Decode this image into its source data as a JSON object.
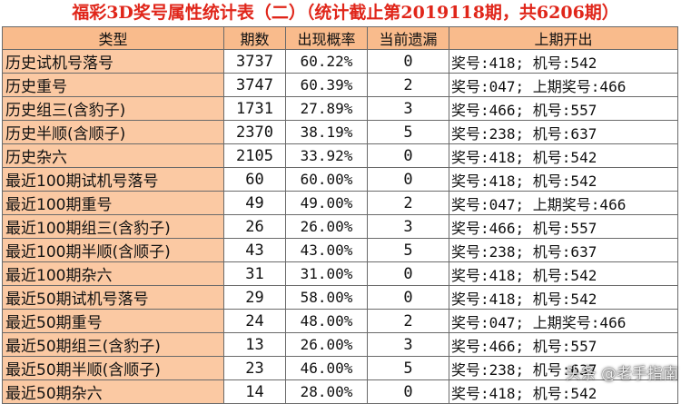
{
  "title": "福彩3D奖号属性统计表（二）（统计截止第2019118期，共6206期）",
  "headers": [
    "类型",
    "期数",
    "出现概率",
    "当前遗漏",
    "上期开出"
  ],
  "rows": [
    {
      "name": "历史试机号落号",
      "count": "3737",
      "rate": "60.22%",
      "miss": "0",
      "last": "奖号:418; 机号:542"
    },
    {
      "name": "历史重号",
      "count": "3747",
      "rate": "60.39%",
      "miss": "2",
      "last": "奖号:047; 上期奖号:466"
    },
    {
      "name": "历史组三(含豹子)",
      "count": "1731",
      "rate": "27.89%",
      "miss": "3",
      "last": "奖号:466; 机号:557"
    },
    {
      "name": "历史半顺(含顺子)",
      "count": "2370",
      "rate": "38.19%",
      "miss": "5",
      "last": "奖号:238; 机号:637"
    },
    {
      "name": "历史杂六",
      "count": "2105",
      "rate": "33.92%",
      "miss": "0",
      "last": "奖号:418; 机号:542"
    },
    {
      "name": "最近100期试机号落号",
      "count": "60",
      "rate": "60.00%",
      "miss": "0",
      "last": "奖号:418; 机号:542"
    },
    {
      "name": "最近100期重号",
      "count": "49",
      "rate": "49.00%",
      "miss": "2",
      "last": "奖号:047; 上期奖号:466"
    },
    {
      "name": "最近100期组三(含豹子)",
      "count": "26",
      "rate": "26.00%",
      "miss": "3",
      "last": "奖号:466; 机号:557"
    },
    {
      "name": "最近100期半顺(含顺子)",
      "count": "43",
      "rate": "43.00%",
      "miss": "5",
      "last": "奖号:238; 机号:637"
    },
    {
      "name": "最近100期杂六",
      "count": "31",
      "rate": "31.00%",
      "miss": "0",
      "last": "奖号:418; 机号:542"
    },
    {
      "name": "最近50期试机号落号",
      "count": "29",
      "rate": "58.00%",
      "miss": "0",
      "last": "奖号:418; 机号:542"
    },
    {
      "name": "最近50期重号",
      "count": "24",
      "rate": "48.00%",
      "miss": "2",
      "last": "奖号:047; 上期奖号:466"
    },
    {
      "name": "最近50期组三(含豹子)",
      "count": "13",
      "rate": "26.00%",
      "miss": "3",
      "last": "奖号:466; 机号:557"
    },
    {
      "name": "最近50期半顺(含顺子)",
      "count": "23",
      "rate": "46.00%",
      "miss": "5",
      "last": "奖号:238; 机号:637"
    },
    {
      "name": "最近50期杂六",
      "count": "14",
      "rate": "28.00%",
      "miss": "0",
      "last": "奖号:418; 机号:542"
    }
  ],
  "watermark": "头条 @老手指南",
  "colors": {
    "title": "#e0261a",
    "header_bg": "#f9bb8c",
    "name_bg": "#fbc9a3",
    "border": "#6a6a6a"
  }
}
